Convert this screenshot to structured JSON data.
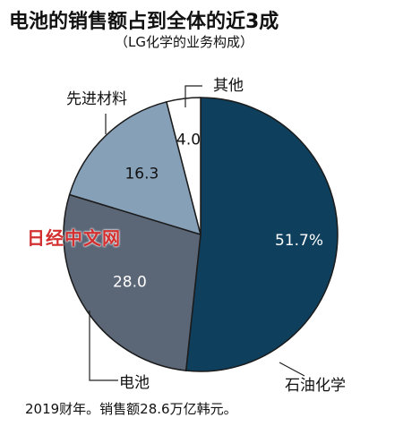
{
  "header": {
    "title": "电池的销售额占到全体的近3成",
    "subtitle": "（LG化学的业务构成）"
  },
  "footnote": "2019财年。销售额28.6万亿韩元。",
  "watermark": "日经中文网",
  "chart_data": {
    "type": "pie",
    "title": "电池的销售额占到全体的近3成",
    "subtitle": "（LG化学的业务构成）",
    "slices": [
      {
        "label": "石油化学",
        "value": 51.7,
        "value_label": "51.7%",
        "color": "#0e3f5d",
        "text_color": "#ffffff"
      },
      {
        "label": "电池",
        "value": 28.0,
        "value_label": "28.0",
        "color": "#5b6677",
        "text_color": "#ffffff"
      },
      {
        "label": "先进材料",
        "value": 16.3,
        "value_label": "16.3",
        "color": "#86a0b8",
        "text_color": "#111111"
      },
      {
        "label": "其他",
        "value": 4.0,
        "value_label": "4.0",
        "color": "#ffffff",
        "text_color": "#111111"
      }
    ],
    "legend": "none",
    "grid": false
  }
}
